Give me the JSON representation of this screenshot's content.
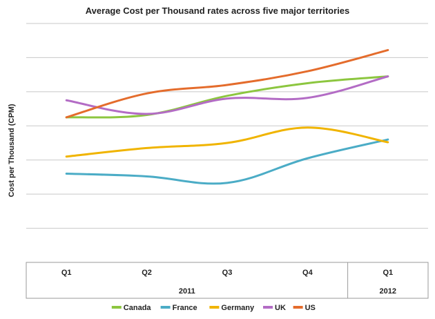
{
  "chart_data": {
    "type": "line",
    "title": "Average Cost per Thousand rates across five major territories",
    "xlabel": "",
    "ylabel": "Cost per Thousand (CPM)",
    "ylim": [
      0,
      7
    ],
    "grid": true,
    "legend_placement": "bottom",
    "categories": [
      "Q1",
      "Q2",
      "Q3",
      "Q4",
      "Q1"
    ],
    "year_groups": [
      {
        "label": "2011",
        "span": 4
      },
      {
        "label": "2012",
        "span": 1
      }
    ],
    "series": [
      {
        "name": "Canada",
        "color": "#8CC63F",
        "values": [
          4.25,
          4.32,
          4.88,
          5.25,
          5.45
        ]
      },
      {
        "name": "France",
        "color": "#4BACC6",
        "values": [
          2.6,
          2.52,
          2.33,
          3.05,
          3.6
        ]
      },
      {
        "name": "Germany",
        "color": "#F0B400",
        "values": [
          3.1,
          3.35,
          3.5,
          3.95,
          3.52
        ]
      },
      {
        "name": "UK",
        "color": "#B36CC5",
        "values": [
          4.75,
          4.35,
          4.8,
          4.82,
          5.45
        ]
      },
      {
        "name": "US",
        "color": "#E46C2C",
        "values": [
          4.25,
          4.95,
          5.2,
          5.6,
          6.22
        ]
      }
    ]
  }
}
